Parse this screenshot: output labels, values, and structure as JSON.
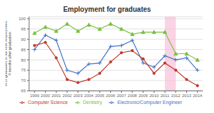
{
  "chart_data": {
    "type": "line",
    "title": "Employment for graduates",
    "ylabel": "% of graduates in full time employment\n4 months after graduation",
    "x": [
      1999,
      2000,
      2001,
      2002,
      2003,
      2004,
      2005,
      2006,
      2007,
      2008,
      2009,
      2010,
      2011,
      2012,
      2013,
      2014
    ],
    "series": [
      {
        "name": "Dentistry",
        "color": "#7ac143",
        "marker": "triangle",
        "values": [
          93,
          96,
          94,
          97.5,
          94,
          97,
          95,
          97.5,
          95,
          92.5,
          93.5,
          93.5,
          93.5,
          83,
          83,
          80
        ]
      },
      {
        "name": "Electronic/Computer Engineer",
        "color": "#4472c4",
        "marker": "plus",
        "values": [
          85,
          92,
          89.5,
          75,
          73.5,
          78,
          78.5,
          86.5,
          87,
          89.5,
          78.5,
          76.5,
          82,
          80,
          81,
          75
        ]
      },
      {
        "name": "Computer Science",
        "color": "#c0392b",
        "marker": "circle",
        "values": [
          87,
          88.5,
          81,
          70.5,
          69,
          70.5,
          73.5,
          79,
          83.5,
          84.5,
          80.5,
          73.5,
          78.5,
          75,
          70.5,
          67.5
        ]
      }
    ],
    "shaded_region": {
      "x": [
        2011,
        2012
      ],
      "color": "#f8c0d8"
    },
    "xlim": [
      1998.5,
      2014.5
    ],
    "xticks": [
      1999,
      2000,
      2001,
      2002,
      2003,
      2004,
      2005,
      2006,
      2007,
      2008,
      2009,
      2010,
      2011,
      2012,
      2013,
      2014
    ],
    "ylim": [
      65,
      101
    ],
    "yticks": [
      65,
      70,
      75,
      80,
      85,
      90,
      95,
      100
    ],
    "grid": "y",
    "legend": "bottom"
  }
}
